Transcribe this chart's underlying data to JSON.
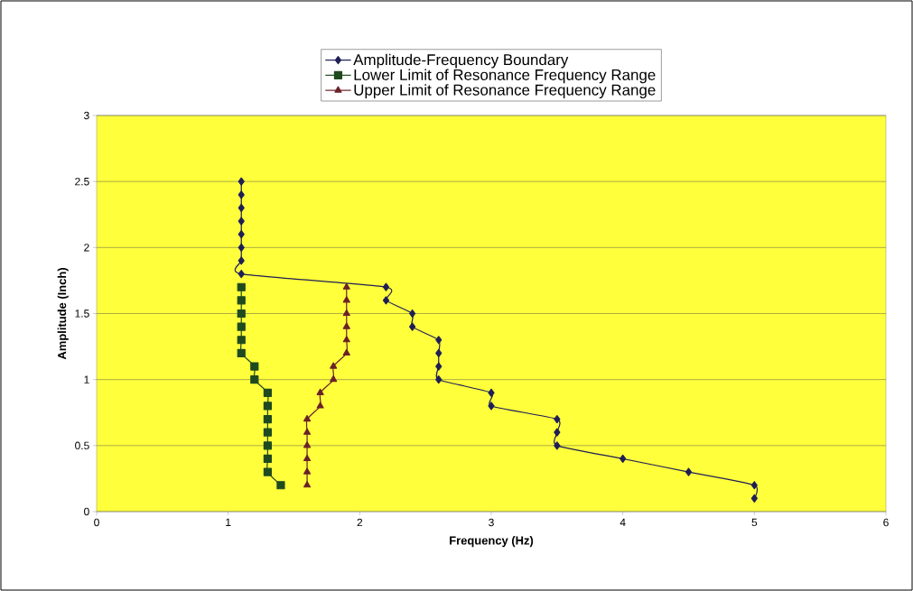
{
  "chart_data": {
    "type": "line",
    "xlabel": "Frequency (Hz)",
    "ylabel": "Amplitude (Inch)",
    "xlim": [
      0,
      6
    ],
    "xticks": [
      0,
      1,
      2,
      3,
      4,
      5,
      6
    ],
    "ylim": [
      0,
      3
    ],
    "yticks": [
      0,
      0.5,
      1,
      1.5,
      2,
      2.5,
      3
    ],
    "grid": "y",
    "legend": "top",
    "line_style": "solid",
    "series": [
      {
        "name": "Amplitude-Frequency Boundary",
        "color": "#1f1f55",
        "marker": "diamond",
        "x": [
          1.1,
          1.1,
          1.1,
          1.1,
          1.1,
          1.1,
          1.1,
          1.1,
          2.2,
          2.2,
          2.4,
          2.4,
          2.6,
          2.6,
          2.6,
          2.6,
          3,
          3,
          3.5,
          3.5,
          3.5,
          4,
          4.5,
          5,
          5
        ],
        "values": [
          2.5,
          2.4,
          2.3,
          2.2,
          2.1,
          2.0,
          1.9,
          1.8,
          1.7,
          1.6,
          1.5,
          1.4,
          1.3,
          1.2,
          1.1,
          1.0,
          0.9,
          0.8,
          0.7,
          0.6,
          0.5,
          0.4,
          0.3,
          0.2,
          0.1
        ]
      },
      {
        "name": "Lower Limit of Resonance Frequency Range",
        "color": "#1f4a1f",
        "marker": "square",
        "x": [
          1.1,
          1.1,
          1.1,
          1.1,
          1.1,
          1.1,
          1.2,
          1.2,
          1.3,
          1.3,
          1.3,
          1.3,
          1.3,
          1.3,
          1.3,
          1.4
        ],
        "values": [
          1.7,
          1.6,
          1.5,
          1.4,
          1.3,
          1.2,
          1.1,
          1.0,
          0.9,
          0.8,
          0.7,
          0.6,
          0.5,
          0.4,
          0.3,
          0.2
        ]
      },
      {
        "name": "Upper Limit of Resonance Frequency Range",
        "color": "#6b2228",
        "marker": "triangle",
        "x": [
          1.6,
          1.6,
          1.6,
          1.6,
          1.6,
          1.6,
          1.7,
          1.7,
          1.8,
          1.8,
          1.9,
          1.9,
          1.9,
          1.9,
          1.9,
          1.9
        ],
        "values": [
          0.2,
          0.3,
          0.4,
          0.5,
          0.6,
          0.7,
          0.8,
          0.9,
          1.0,
          1.1,
          1.2,
          1.3,
          1.4,
          1.5,
          1.6,
          1.7
        ]
      }
    ]
  }
}
